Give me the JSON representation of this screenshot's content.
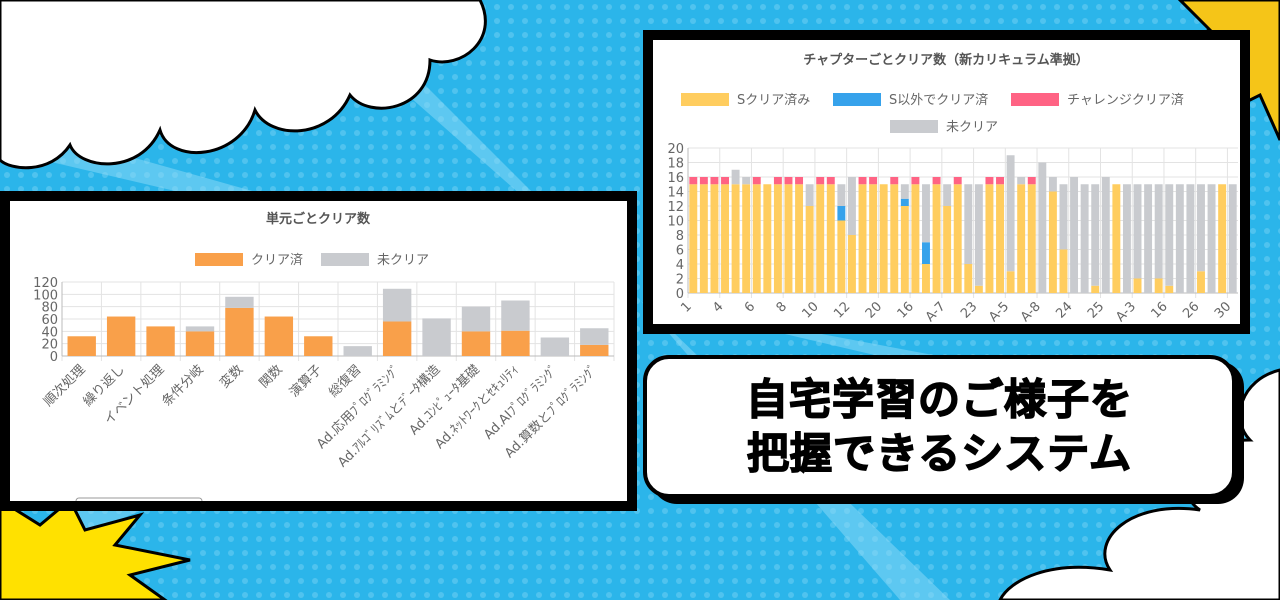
{
  "banner": {
    "line1": "自宅学習のご様子を",
    "line2": "把握できるシステム"
  },
  "colors": {
    "background_blue": "#2bb5ea",
    "burst_yellow": "#ffe100",
    "orange": "#f9a04a",
    "gray": "#c9cbcf",
    "yellow": "#ffcd5f",
    "blue": "#36a2eb",
    "pink": "#ff6384"
  },
  "chart_data": [
    {
      "type": "bar",
      "stacked": true,
      "title": "単元ごとクリア数",
      "legend_position": "top",
      "grid": true,
      "ylim": [
        0,
        120
      ],
      "yticks": [
        0,
        20,
        40,
        60,
        80,
        100,
        120
      ],
      "categories": [
        "順次処理",
        "繰り返し",
        "イベント処理",
        "条件分岐",
        "変数",
        "関数",
        "演算子",
        "総復習",
        "Ad.応用ﾌﾟﾛｸﾞﾗﾐﾝｸﾞ",
        "Ad.ｱﾙｺﾞﾘｽﾞﾑとﾃﾞｰﾀ構造",
        "Ad.ｺﾝﾋﾟｭｰﾀ基礎",
        "Ad.ﾈｯﾄﾜｰｸとｾｷｭﾘﾃｨ",
        "Ad.AIﾌﾟﾛｸﾞﾗﾐﾝｸﾞ",
        "Ad.算数とﾌﾟﾛｸﾞﾗﾐﾝｸﾞ"
      ],
      "series": [
        {
          "name": "クリア済",
          "color": "#f9a04a",
          "values": [
            32,
            64,
            48,
            40,
            78,
            64,
            32,
            0,
            56,
            0,
            40,
            41,
            0,
            18
          ]
        },
        {
          "name": "未クリア",
          "color": "#c9cbcf",
          "values": [
            0,
            0,
            0,
            8,
            18,
            0,
            0,
            16,
            53,
            61,
            40,
            49,
            30,
            27
          ]
        }
      ]
    },
    {
      "type": "bar",
      "stacked": true,
      "title": "チャプターごとクリア数（新カリキュラム準拠）",
      "legend_position": "top",
      "grid": true,
      "ylim": [
        0,
        20
      ],
      "yticks": [
        0,
        2,
        4,
        6,
        8,
        10,
        12,
        14,
        16,
        18,
        20
      ],
      "tick_labels": [
        "1",
        "4",
        "6",
        "8",
        "10",
        "12",
        "20",
        "16",
        "A-7",
        "23",
        "A-5",
        "A-8",
        "24",
        "25",
        "A-3",
        "16",
        "26",
        "30"
      ],
      "series": [
        {
          "name": "Sクリア済み",
          "color": "#ffcd5f",
          "values": [
            15,
            15,
            15,
            15,
            15,
            15,
            15,
            15,
            15,
            15,
            15,
            12,
            15,
            15,
            10,
            8,
            15,
            15,
            15,
            15,
            12,
            15,
            4,
            15,
            12,
            15,
            4,
            1,
            15,
            15,
            3,
            15,
            15,
            0,
            14,
            6,
            0,
            0,
            1,
            0,
            15,
            0,
            2,
            0,
            2,
            1,
            0,
            0,
            3,
            0,
            15,
            0
          ]
        },
        {
          "name": "S以外でクリア済",
          "color": "#36a2eb",
          "values": [
            0,
            0,
            0,
            0,
            0,
            0,
            0,
            0,
            0,
            0,
            0,
            0,
            0,
            0,
            2,
            0,
            0,
            0,
            0,
            0,
            1,
            0,
            3,
            0,
            0,
            0,
            0,
            0,
            0,
            0,
            0,
            0,
            0,
            0,
            0,
            0,
            0,
            0,
            0,
            0,
            0,
            0,
            0,
            0,
            0,
            0,
            0,
            0,
            0,
            0,
            0,
            0
          ]
        },
        {
          "name": "チャレンジクリア済",
          "color": "#ff6384",
          "values": [
            1,
            1,
            1,
            1,
            0,
            0,
            1,
            0,
            1,
            1,
            1,
            0,
            1,
            1,
            0,
            0,
            1,
            1,
            0,
            1,
            0,
            1,
            0,
            1,
            0,
            1,
            0,
            0,
            1,
            1,
            0,
            0,
            1,
            0,
            0,
            0,
            0,
            0,
            0,
            0,
            0,
            0,
            0,
            0,
            0,
            0,
            0,
            0,
            0,
            0,
            0,
            0
          ]
        },
        {
          "name": "未クリア",
          "color": "#c9cbcf",
          "values": [
            0,
            0,
            0,
            0,
            2,
            1,
            0,
            0,
            0,
            0,
            0,
            3,
            0,
            0,
            3,
            8,
            0,
            0,
            0,
            0,
            2,
            0,
            8,
            0,
            3,
            0,
            11,
            14,
            0,
            0,
            16,
            1,
            0,
            18,
            2,
            9,
            16,
            15,
            14,
            16,
            0,
            15,
            13,
            15,
            13,
            14,
            15,
            15,
            12,
            15,
            0,
            15
          ]
        }
      ]
    }
  ]
}
